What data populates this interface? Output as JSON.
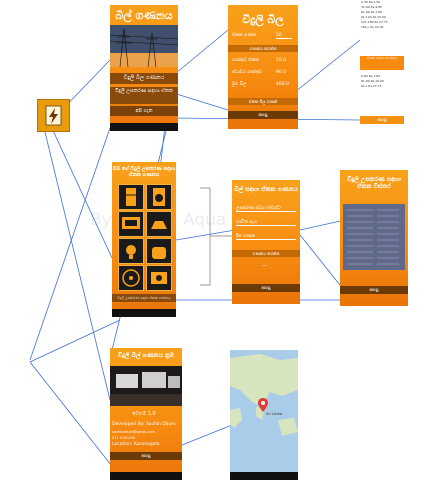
{
  "watermark": "By City By Aqua",
  "app_icon": {
    "name": "lightning-bill-icon",
    "color": "#f0a500"
  },
  "main_screen": {
    "title": "බිල් ගණනය",
    "btn_bill": "විදුලි බිල ගණනය",
    "btn_appliances": "විදුලි උපකරණ සඳහා ඒකක",
    "btn_about": "අපි ගැන"
  },
  "bill_screen": {
    "title": "විදුලි බිල",
    "unit_label": "ඒකක ගණන",
    "unit_value": "56",
    "calc_button": "ගණනය කරන්න",
    "rows": [
      {
        "label": "ගාස්තුව ඒකක",
        "value": "10.0"
      },
      {
        "label": "ස්ථාවර ගාස්තුව",
        "value": "90.0"
      },
      {
        "label": "මුළු බිල",
        "value": "460.0"
      }
    ],
    "units_button": "ඒකක මිල ගණන්",
    "back_button": "ආපසු"
  },
  "rates_screen": {
    "heading": "ඒකක ගාස්තු",
    "lines": [
      "0-30        Rs.2.50",
      "31-60       Rs.4.85",
      "61-90       Rs.7.85",
      "91-120      Rs.10.00",
      "121-180     Rs.27.75",
      "181+        Rs.32.00"
    ],
    "note": "ඒකක සඳහා ගාස්තුව",
    "lines2": [
      "0-60        Rs.7.85",
      "61-90       Rs.10.00",
      "91+         Rs.27.75"
    ],
    "back_button": "ආපසු"
  },
  "appliance_grid": {
    "title": "ඔබ ගේ විදුලි උපකරණ සඳහා ඒකක ගණනය",
    "icons": [
      "fridge-icon",
      "washer-icon",
      "tv-icon",
      "iron-icon",
      "bulb-icon",
      "cooker-icon",
      "fan-icon",
      "ac-icon"
    ],
    "footer": "විදුලි උපකරණ සඳහා ඒකක ගණනය"
  },
  "unit_calc_screen": {
    "title": "බිල් සඳහා ඒකක ගණනය",
    "fields": [
      "උපකරණ ජවය (වොට්)",
      "භාවිත පැය",
      "දින ගණන"
    ],
    "calc_button": "ගණනය කරන්න",
    "result": "---",
    "back_button": "ආපසු"
  },
  "details_screen": {
    "title": "විදුලි උපකරණ සඳහා ඒකක විස්තර",
    "back_button": "ආපසු"
  },
  "about_screen": {
    "title": "විදුලි බිල් ගණනය ක්‍රම",
    "version": "වෙළුම 1.0",
    "developer": "Developed By: Sachin Dilum",
    "line3": "sachindilum@gmail.com",
    "line4": "071 0760230",
    "location": "Location: Kurunegala",
    "back_button": "ආපසු"
  },
  "map_screen": {
    "place": "Sri Lanka"
  }
}
